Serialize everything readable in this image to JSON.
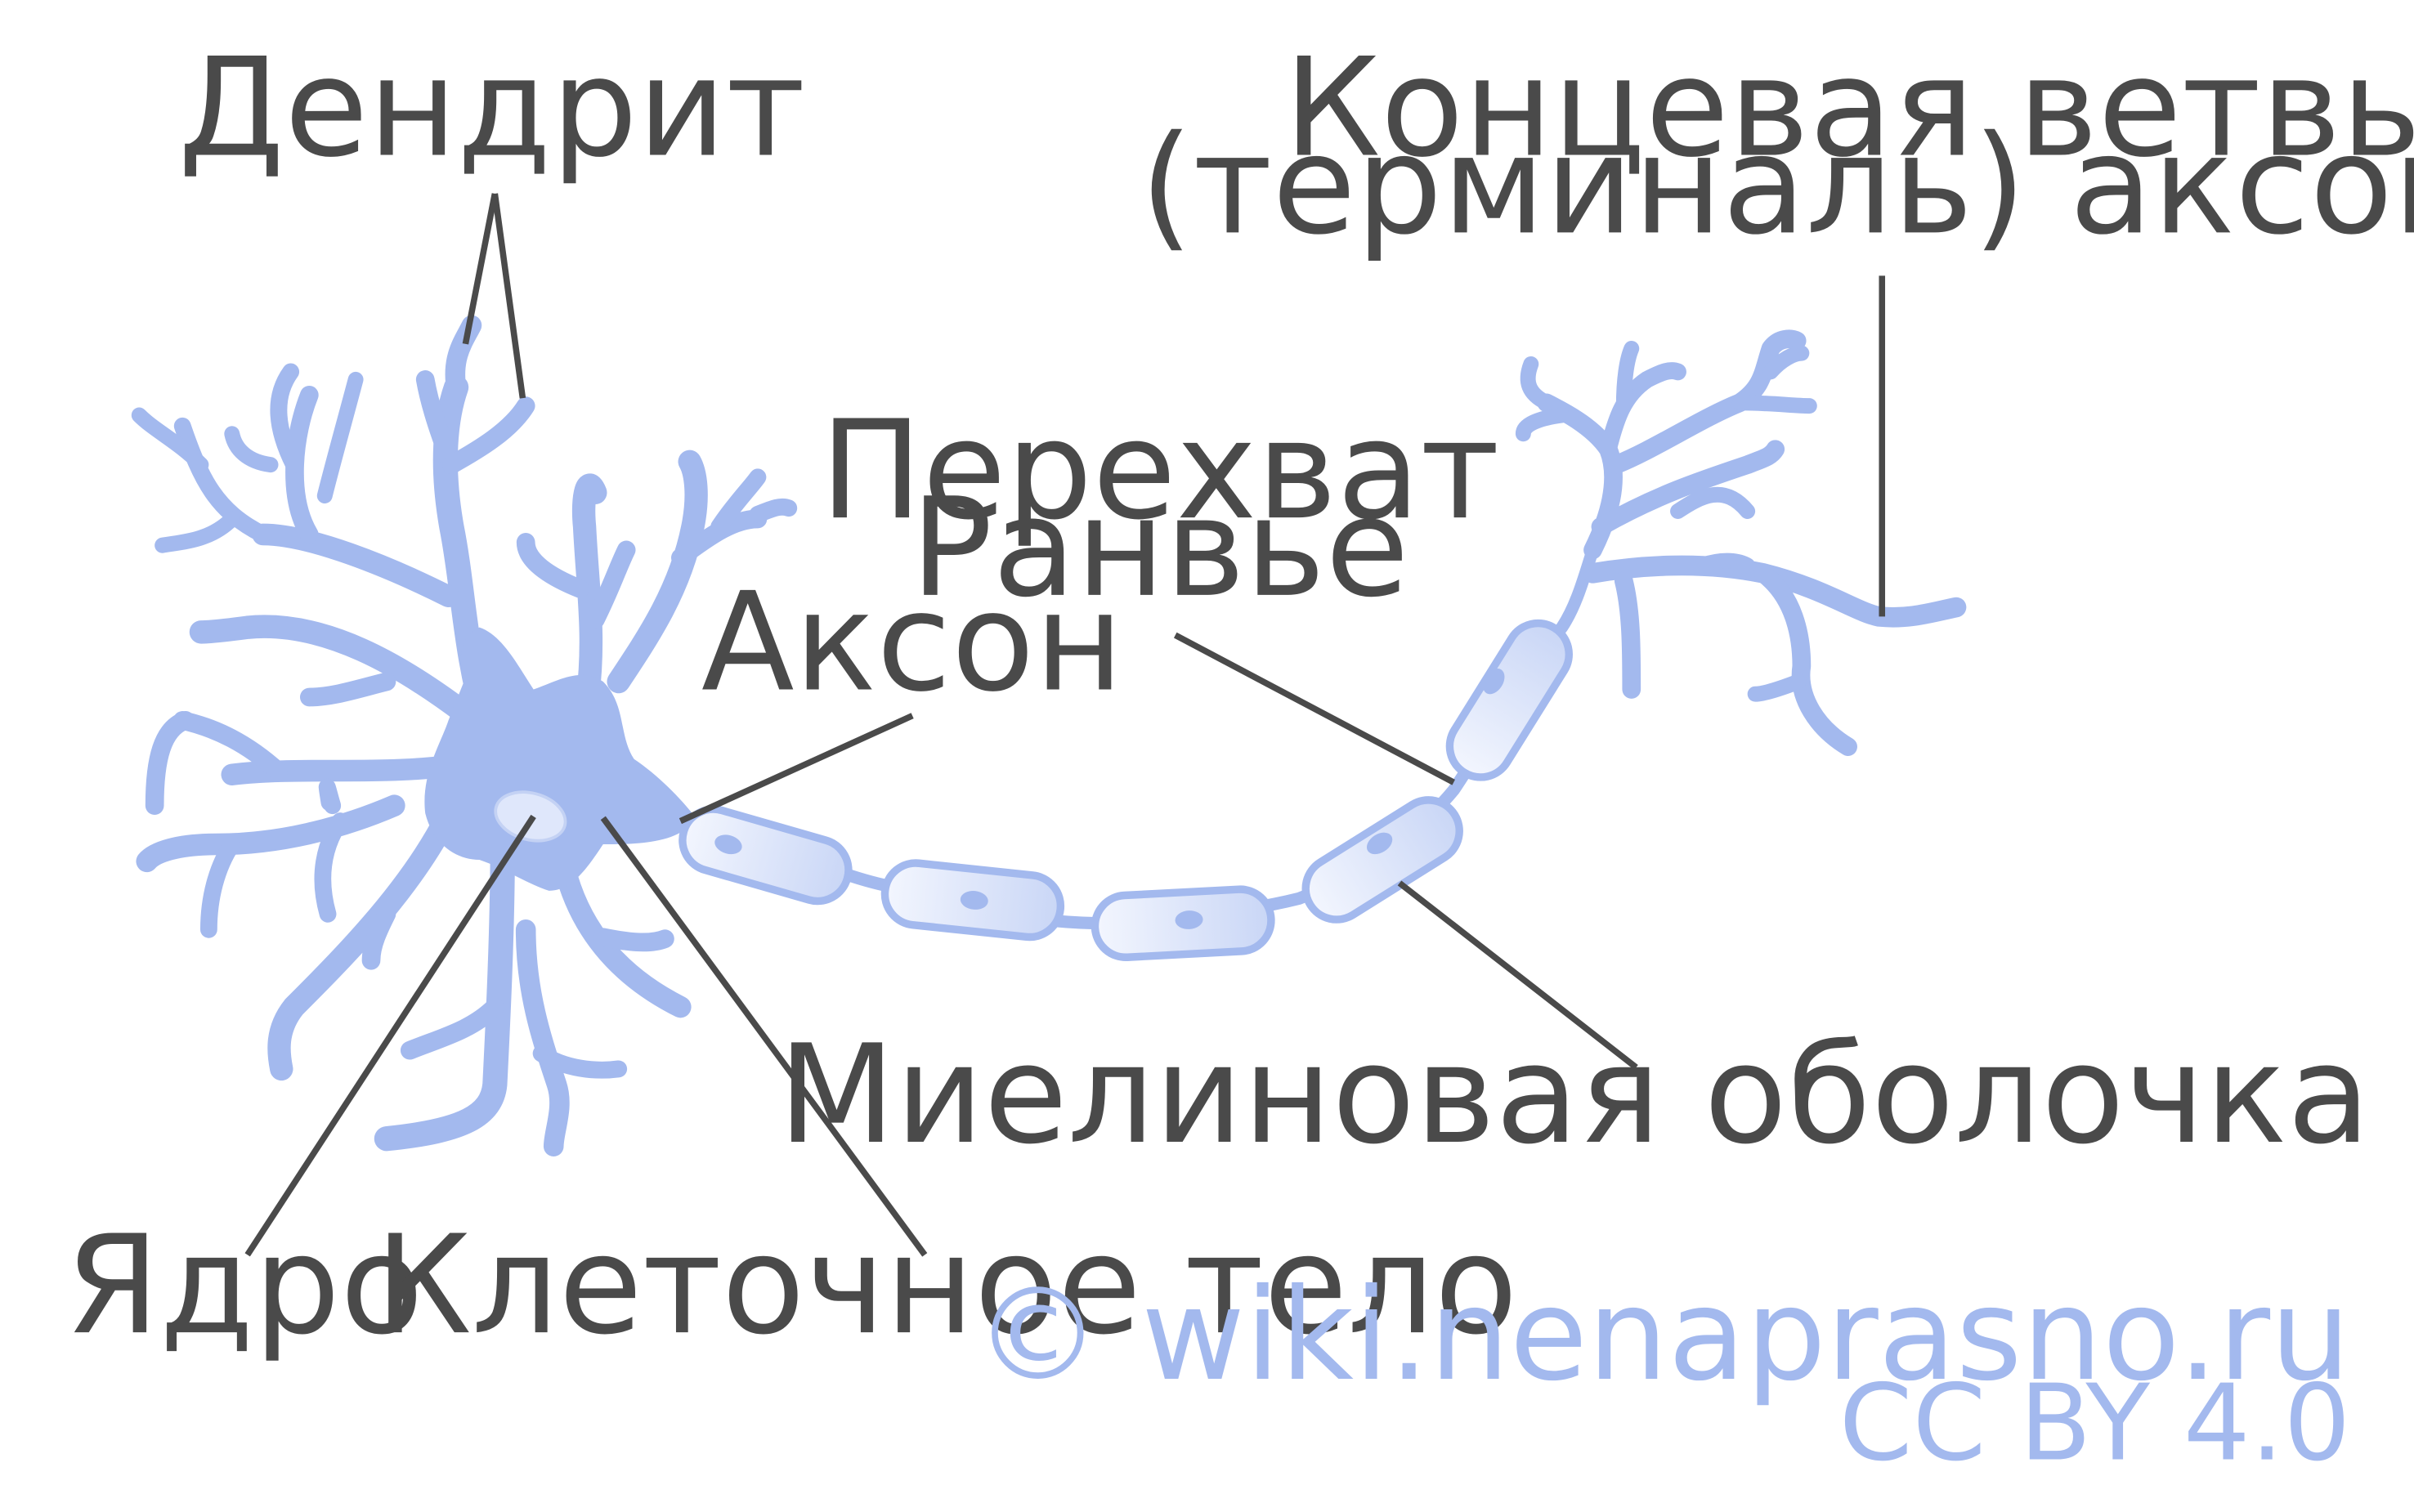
{
  "labels": {
    "dendrite": "Дендрит",
    "axon_terminal_line1": "Концевая ветвь",
    "axon_terminal_line2": "(терминаль) аксона",
    "node_of_ranvier_line1": "Перехват",
    "node_of_ranvier_line2": "Ранвье",
    "axon": "Аксон",
    "myelin_sheath": "Миелиновая оболочка",
    "nucleus": "Ядро",
    "cell_body": "Клеточное тело"
  },
  "credit": {
    "site": "© wiki.nenaprasno.ru",
    "license": "CC BY 4.0"
  },
  "colors": {
    "neuron": "#a3b9ee",
    "sheath_fill_light": "#f3f6fe",
    "sheath_fill_dark": "#c9d6f6",
    "nucleus": "#dfe7fb",
    "label_text": "#4a4a4a",
    "credit_text": "#a3b9ee"
  }
}
